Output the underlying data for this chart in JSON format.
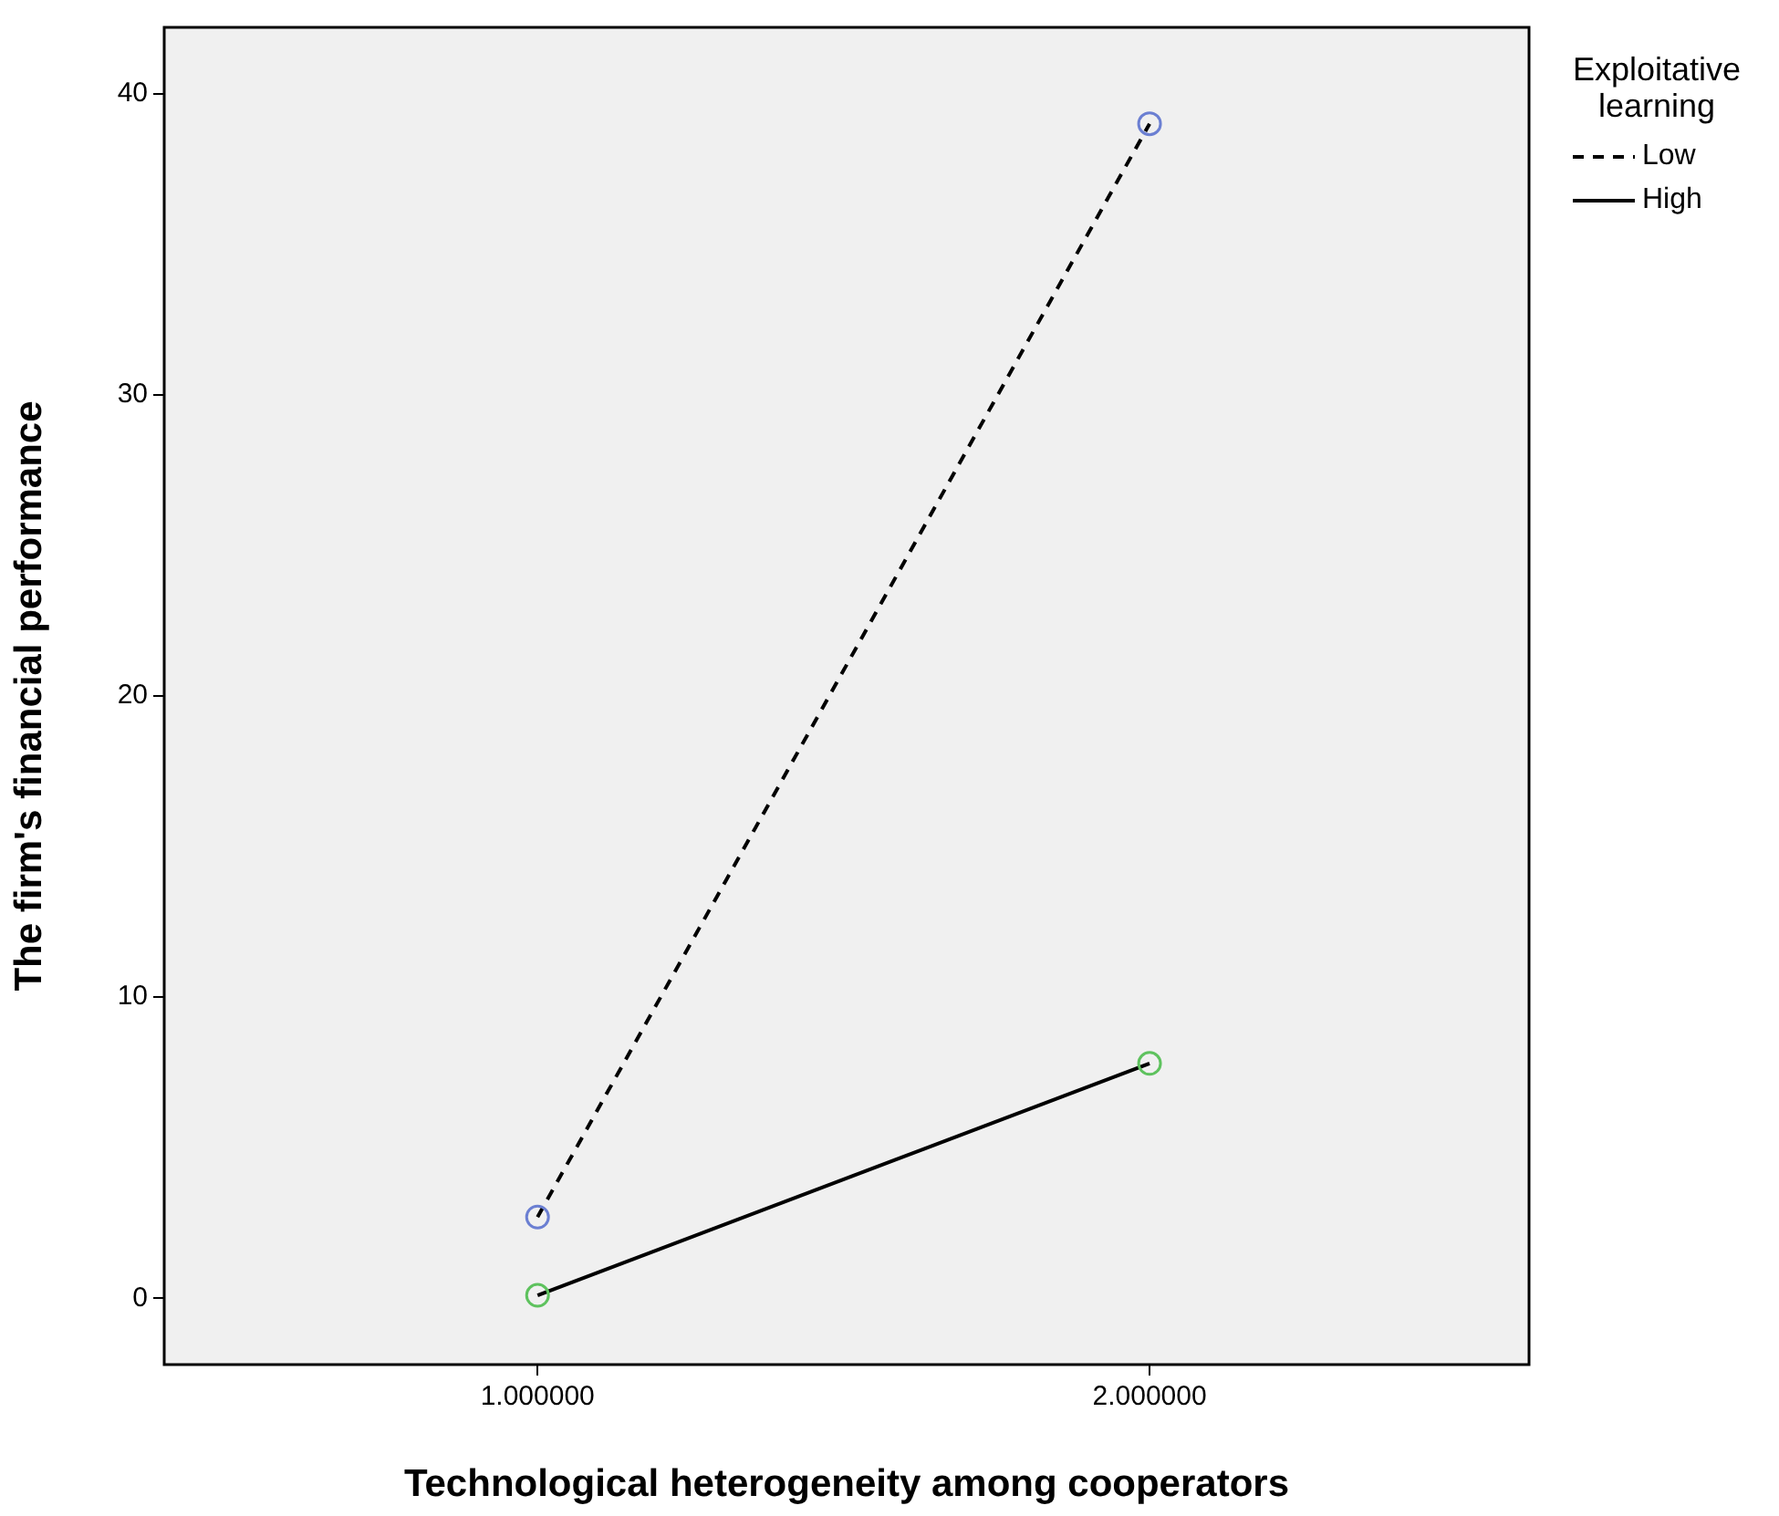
{
  "chart_data": {
    "type": "line",
    "xlabel": "Technological heterogeneity among cooperators",
    "ylabel": "The firm's financial performance",
    "legend_title": "Exploitative learning",
    "legend": "top right",
    "grid": false,
    "marker": "circle",
    "x": [
      1,
      2
    ],
    "xlim": [
      0.39,
      2.62
    ],
    "xticks": [
      {
        "value": 1,
        "label": "1.000000"
      },
      {
        "value": 2,
        "label": "2.000000"
      }
    ],
    "ylim": [
      -2.2,
      42.2
    ],
    "yticks": [
      0,
      10,
      20,
      30,
      40
    ],
    "series": [
      {
        "name": "Low",
        "color": "#000000",
        "colors": [
          "#6b7fd2",
          "#6b7fd2"
        ],
        "line_style": "dashed",
        "values": [
          2.7,
          39.0
        ]
      },
      {
        "name": "High",
        "color": "#000000",
        "colors": [
          "#5ec25e",
          "#5ec25e"
        ],
        "line_style": "solid",
        "values": [
          0.1,
          7.8
        ]
      }
    ]
  }
}
